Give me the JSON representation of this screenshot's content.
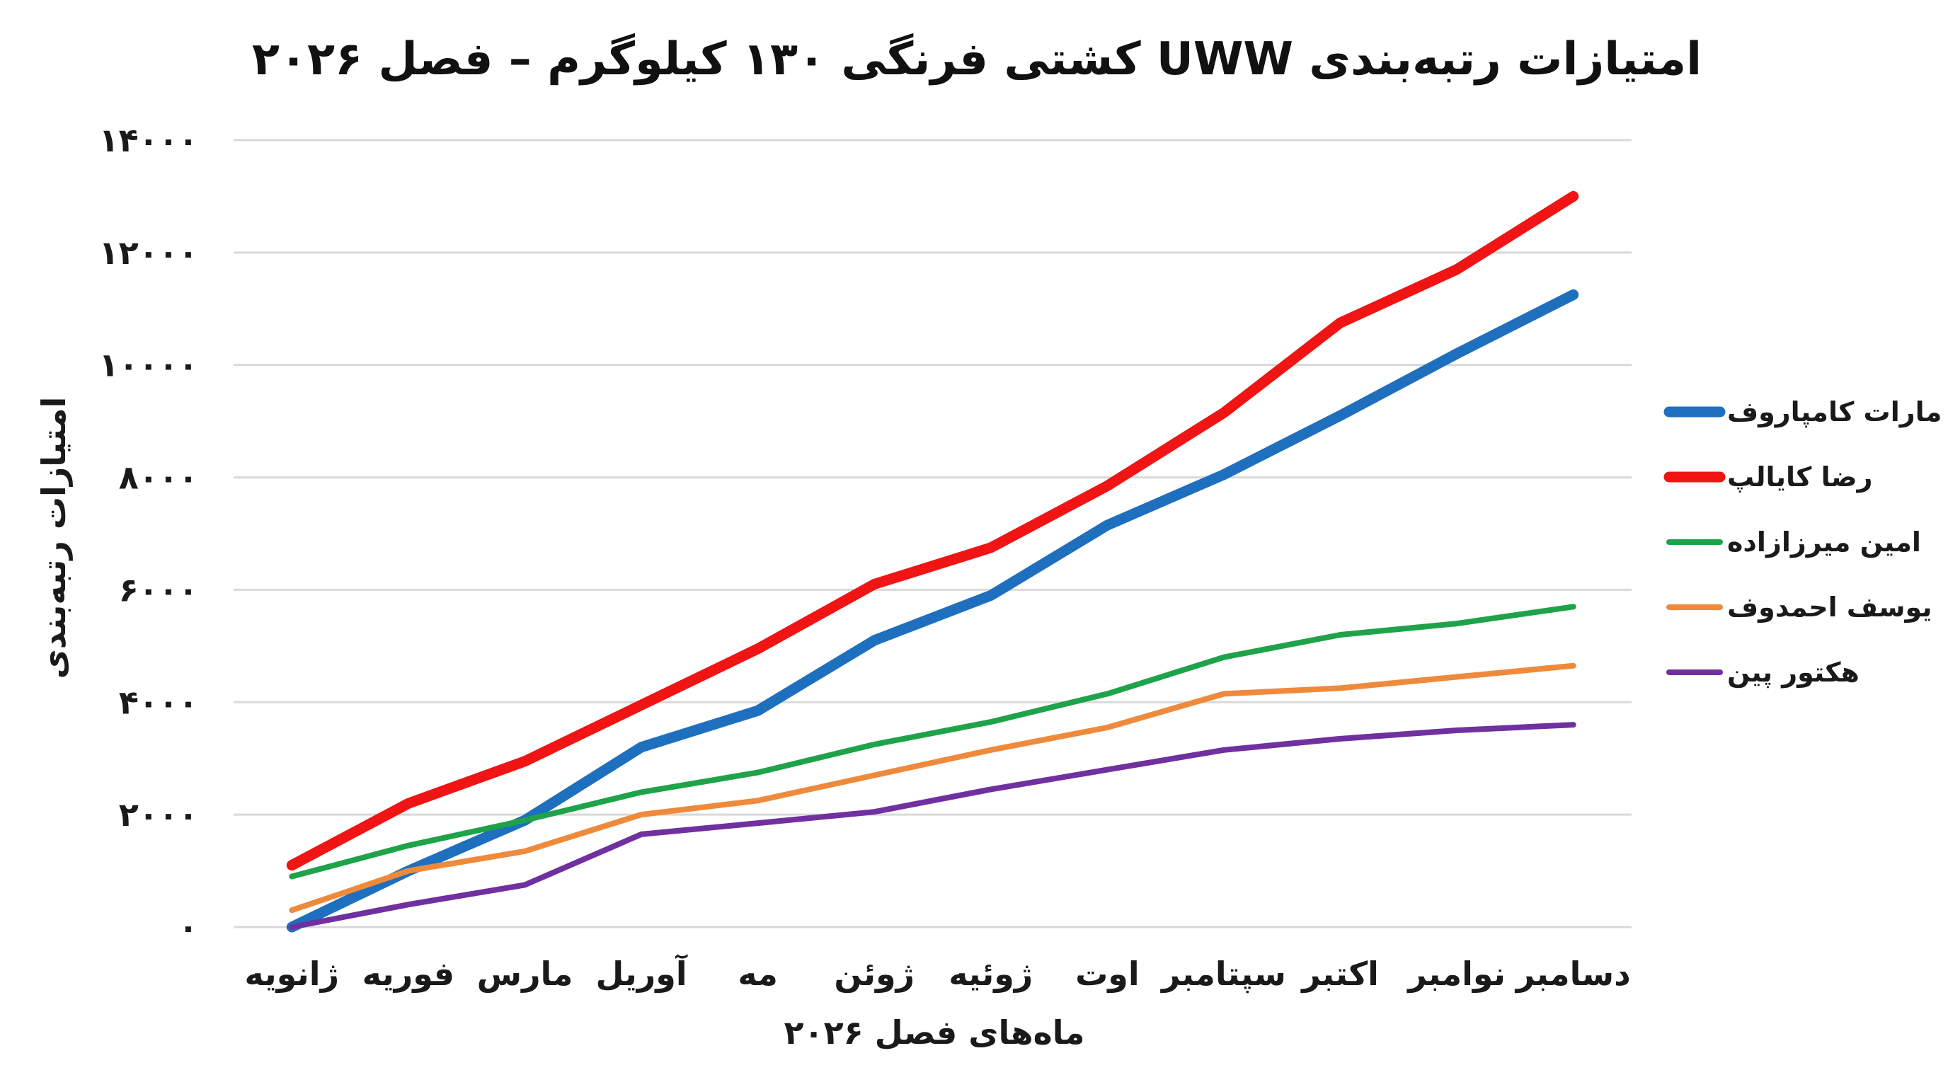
{
  "chart_data": {
    "type": "line",
    "title": "امتیازات رتبه‌بندی UWW کشتی فرنگی ۱۳۰ کیلوگرم – فصل ۲۰۲۶",
    "xlabel": "ماه‌های فصل ۲۰۲۶",
    "ylabel": "امتیازات رتبه‌بندی",
    "ylim": [
      0,
      14000
    ],
    "y_ticks": [
      0,
      2000,
      4000,
      6000,
      8000,
      10000,
      12000,
      14000
    ],
    "y_tick_labels": [
      "۰",
      "۲۰۰۰",
      "۴۰۰۰",
      "۶۰۰۰",
      "۸۰۰۰",
      "۱۰۰۰۰",
      "۱۲۰۰۰",
      "۱۴۰۰۰"
    ],
    "grid": true,
    "legend_position": "right",
    "categories": [
      "ژانویه",
      "فوریه",
      "مارس",
      "آوریل",
      "مه",
      "ژوئن",
      "ژوئیه",
      "اوت",
      "سپتامبر",
      "اکتبر",
      "نوامبر",
      "دسامبر"
    ],
    "series": [
      {
        "name": "مارات کامپاروف",
        "color": "#1f6fbf",
        "values": [
          0,
          1000,
          1900,
          3200,
          3850,
          5100,
          5900,
          7150,
          8050,
          9100,
          10200,
          11250
        ]
      },
      {
        "name": "رضا کایالپ",
        "color": "#f01414",
        "values": [
          1100,
          2200,
          2950,
          3950,
          4950,
          6100,
          6750,
          7850,
          9150,
          10750,
          11700,
          13000
        ]
      },
      {
        "name": "امین میرزازاده",
        "color": "#1fa34a",
        "values": [
          900,
          1450,
          1900,
          2400,
          2750,
          3250,
          3650,
          4150,
          4800,
          5200,
          5400,
          5700
        ]
      },
      {
        "name": "یوسف احمدوف",
        "color": "#ef8a3c",
        "values": [
          300,
          1000,
          1350,
          2000,
          2250,
          2700,
          3150,
          3550,
          4150,
          4250,
          4450,
          4650
        ]
      },
      {
        "name": "هکتور پین",
        "color": "#7030a0",
        "values": [
          0,
          400,
          750,
          1650,
          1850,
          2050,
          2450,
          2800,
          3150,
          3350,
          3500,
          3600
        ]
      }
    ]
  }
}
